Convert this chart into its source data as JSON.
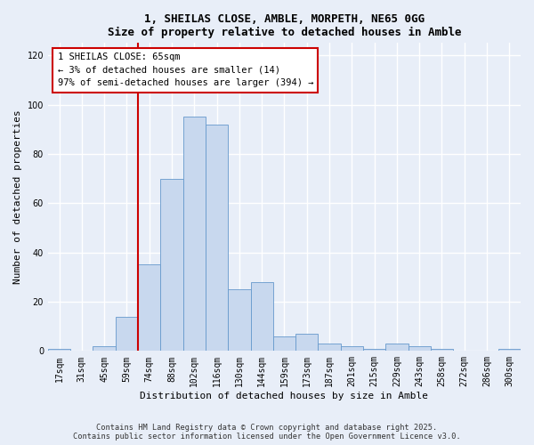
{
  "title": "1, SHEILAS CLOSE, AMBLE, MORPETH, NE65 0GG",
  "subtitle": "Size of property relative to detached houses in Amble",
  "xlabel": "Distribution of detached houses by size in Amble",
  "ylabel": "Number of detached properties",
  "bins": [
    "17sqm",
    "31sqm",
    "45sqm",
    "59sqm",
    "74sqm",
    "88sqm",
    "102sqm",
    "116sqm",
    "130sqm",
    "144sqm",
    "159sqm",
    "173sqm",
    "187sqm",
    "201sqm",
    "215sqm",
    "229sqm",
    "243sqm",
    "258sqm",
    "272sqm",
    "286sqm",
    "300sqm"
  ],
  "values": [
    1,
    0,
    2,
    14,
    35,
    70,
    95,
    92,
    25,
    28,
    6,
    7,
    3,
    2,
    1,
    3,
    2,
    1,
    0,
    0,
    1
  ],
  "bar_color": "#c8d8ee",
  "bar_edge_color": "#6699cc",
  "vline_color": "#cc0000",
  "vline_x_bin": 3,
  "annotation_line1": "1 SHEILAS CLOSE: 65sqm",
  "annotation_line2": "← 3% of detached houses are smaller (14)",
  "annotation_line3": "97% of semi-detached houses are larger (394) →",
  "annotation_box_color": "#ffffff",
  "annotation_box_edge_color": "#cc0000",
  "ylim": [
    0,
    125
  ],
  "yticks": [
    0,
    20,
    40,
    60,
    80,
    100,
    120
  ],
  "footer_line1": "Contains HM Land Registry data © Crown copyright and database right 2025.",
  "footer_line2": "Contains public sector information licensed under the Open Government Licence v3.0.",
  "background_color": "#e8eef8",
  "plot_background_color": "#e8eef8",
  "grid_color": "#ffffff",
  "title_fontsize": 9,
  "subtitle_fontsize": 9,
  "axis_label_fontsize": 8,
  "tick_fontsize": 7,
  "annotation_fontsize": 7.5
}
